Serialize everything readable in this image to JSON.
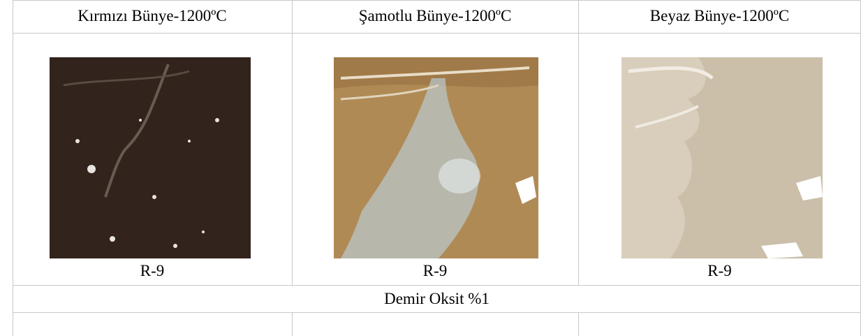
{
  "table": {
    "header": [
      "Kırmızı Bünye-1200ºC",
      "Şamotlu Bünye-1200ºC",
      "Beyaz Bünye-1200ºC"
    ],
    "labels": [
      "R-9",
      "R-9",
      "R-9"
    ],
    "caption": "Demir Oksit %1"
  }
}
